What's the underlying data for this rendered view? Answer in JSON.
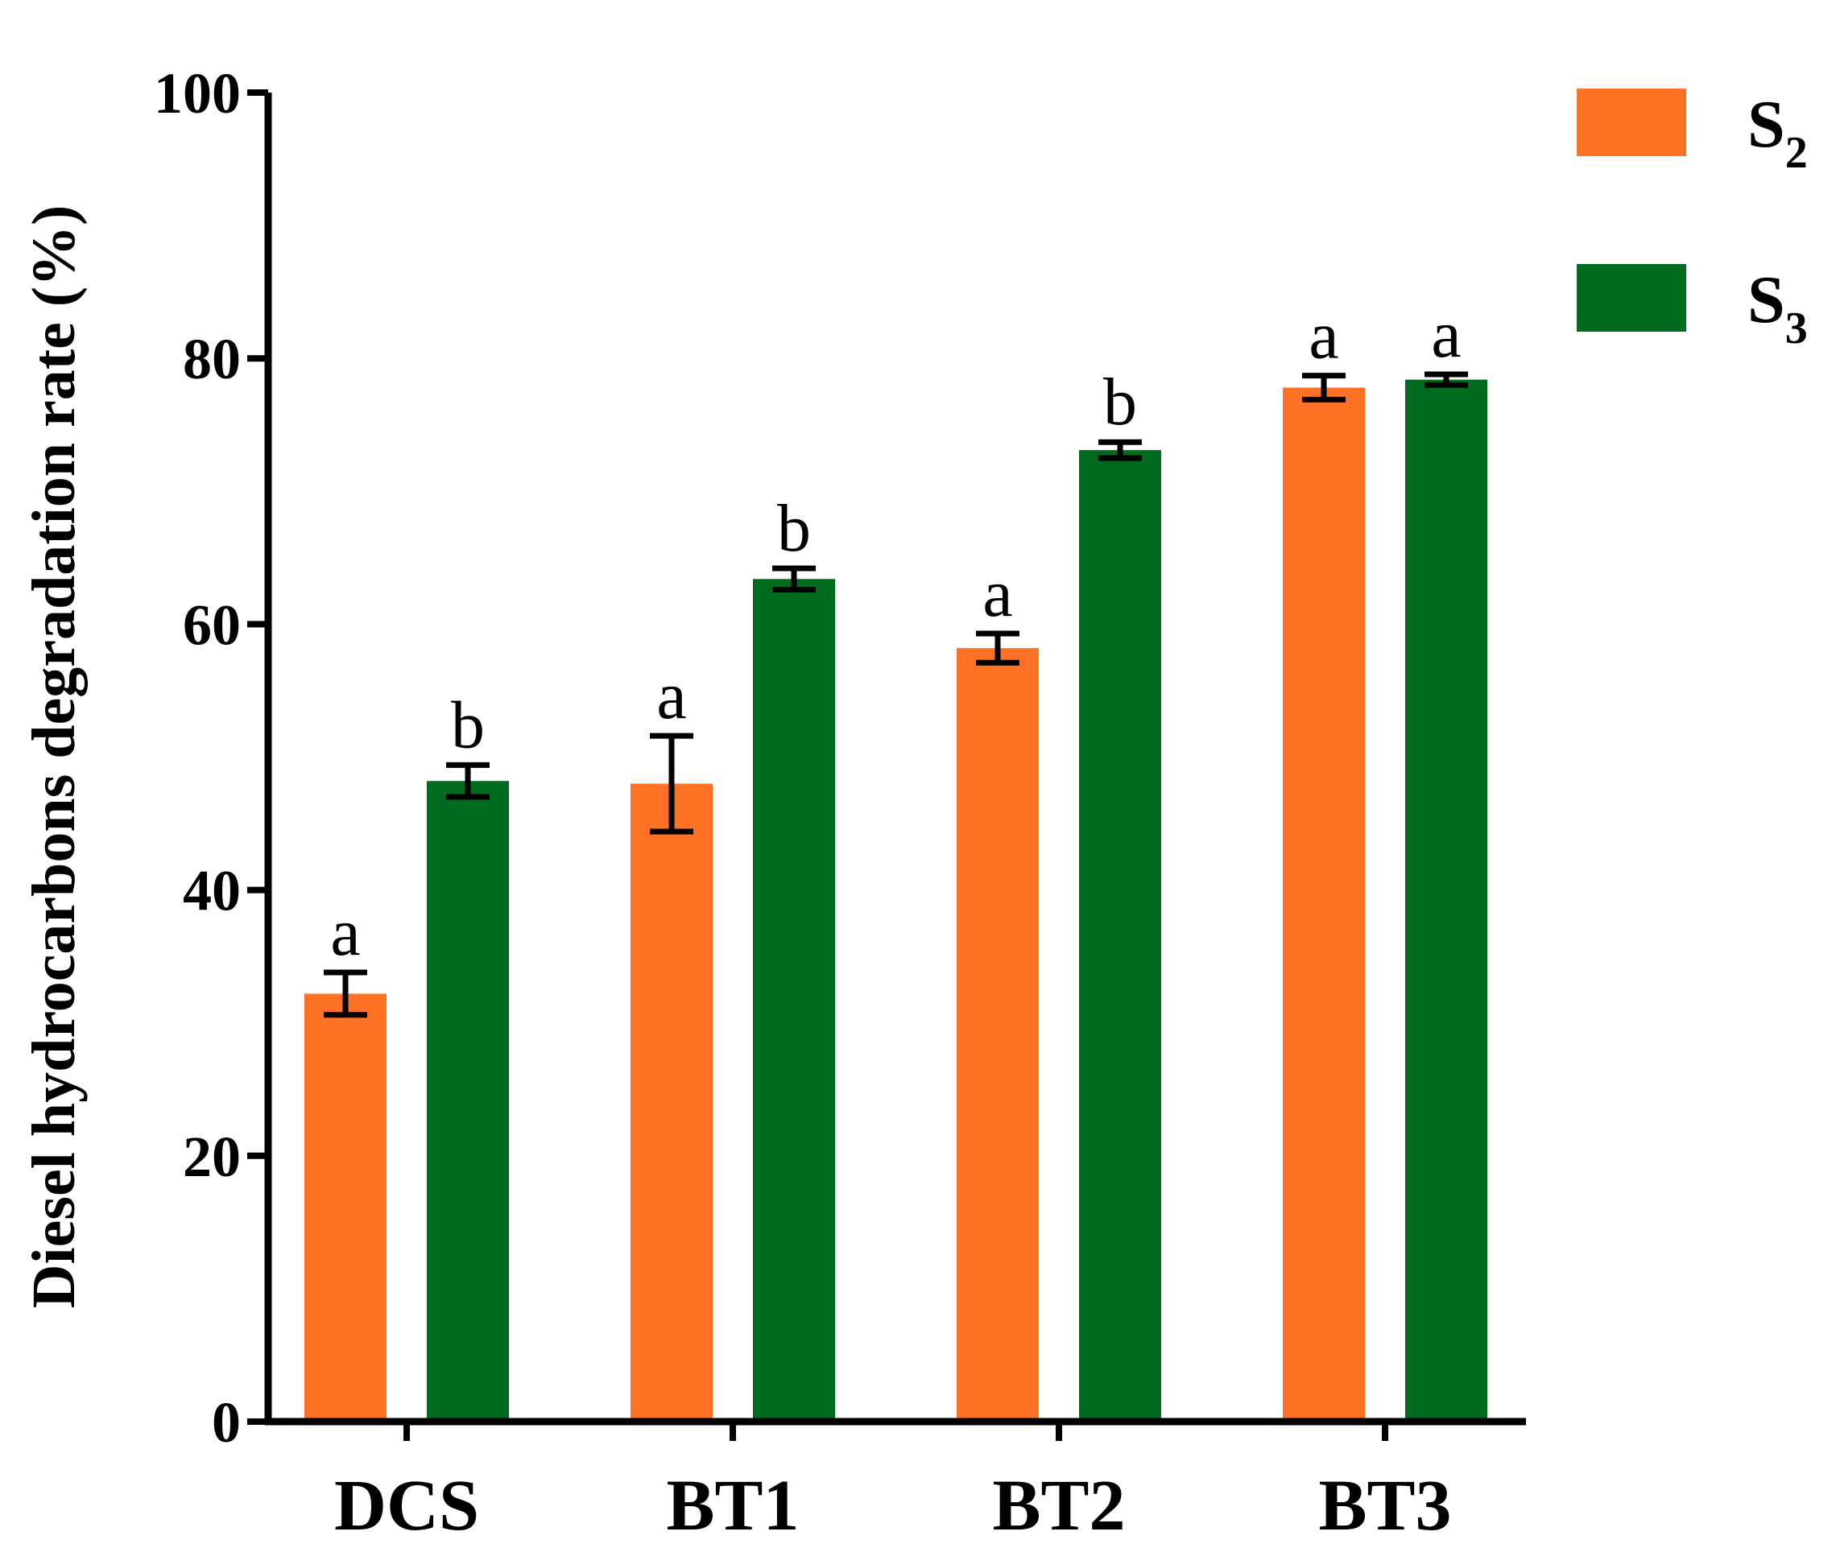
{
  "chart_data": {
    "type": "bar",
    "title": "",
    "xlabel": "",
    "ylabel": "Diesel hydrocarbons degradation rate (%)",
    "ylim": [
      0,
      100
    ],
    "yticks": [
      0,
      20,
      40,
      60,
      80,
      100
    ],
    "yticks_text": [
      "0",
      "20",
      "40",
      "60",
      "80",
      "100"
    ],
    "categories": [
      "DCS",
      "BT1",
      "BT2",
      "BT3"
    ],
    "series": [
      {
        "name": "S2",
        "legend_base": "S",
        "legend_sub": "2",
        "color": "#FF7226",
        "values": [
          32.2,
          48.0,
          58.2,
          77.8
        ],
        "errors": [
          1.6,
          3.6,
          1.1,
          0.9
        ],
        "labels": [
          "a",
          "a",
          "a",
          "a"
        ]
      },
      {
        "name": "S3",
        "legend_base": "S",
        "legend_sub": "3",
        "color": "#006A1F",
        "values": [
          48.2,
          63.4,
          73.1,
          78.4
        ],
        "errors": [
          1.2,
          0.8,
          0.6,
          0.4
        ],
        "labels": [
          "b",
          "b",
          "b",
          "a"
        ]
      }
    ],
    "legend": "top-right"
  }
}
